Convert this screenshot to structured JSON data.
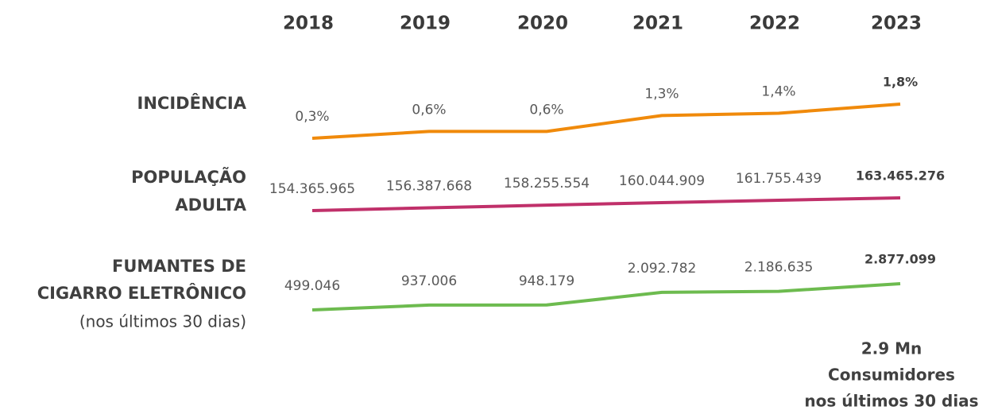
{
  "chart_data": [
    {
      "type": "line",
      "title": [
        "INCIDÊNCIA"
      ],
      "categories": [
        "2018",
        "2019",
        "2020",
        "2021",
        "2022",
        "2023"
      ],
      "values": [
        0.3,
        0.6,
        0.6,
        1.3,
        1.4,
        1.8
      ],
      "value_labels": [
        "0,3%",
        "0,6%",
        "0,6%",
        "1,3%",
        "1,4%",
        "1,8%"
      ],
      "color": "#f08a0b"
    },
    {
      "type": "line",
      "title": [
        "POPULAÇÃO",
        "ADULTA"
      ],
      "values": [
        154365965,
        156387668,
        158255554,
        160044909,
        161755439,
        163465276
      ],
      "value_labels": [
        "154.365.965",
        "156.387.668",
        "158.255.554",
        "160.044.909",
        "161.755.439",
        "163.465.276"
      ],
      "color": "#c0306a"
    },
    {
      "type": "line",
      "title": [
        "FUMANTES DE",
        "CIGARRO ELETRÔNICO"
      ],
      "subtitle": "(nos últimos 30 dias)",
      "values": [
        499046,
        937006,
        948179,
        2092782,
        2186635,
        2877099
      ],
      "value_labels": [
        "499.046",
        "937.006",
        "948.179",
        "2.092.782",
        "2.186.635",
        "2.877.099"
      ],
      "color": "#6dbb4f",
      "annotation": [
        "2.9 Mn",
        "Consumidores",
        "nos últimos 30 dias"
      ]
    }
  ]
}
